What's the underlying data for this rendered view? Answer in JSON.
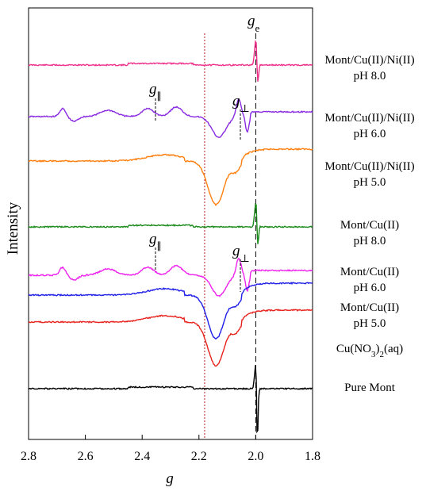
{
  "chart_data": {
    "type": "line",
    "xlabel": "g",
    "ylabel": "Intensity",
    "xlim": [
      2.8,
      1.8
    ],
    "x_reversed": true,
    "x_ticks": [
      "2.8",
      "2.6",
      "2.4",
      "2.2",
      "2.0",
      "1.8"
    ],
    "y_ticks_shown": false,
    "legend": "labels to the right of each trace",
    "reference_lines": [
      {
        "x": 2.18,
        "style": "dotted",
        "color": "#b22222"
      },
      {
        "x": 2.0,
        "style": "dashed",
        "color": "#000000"
      }
    ],
    "annotations": [
      {
        "text": "g",
        "subscript": "e",
        "x": 2.0,
        "near": "top"
      },
      {
        "text": "g",
        "subscript": "∥",
        "x": 2.35,
        "series": "Mont/Cu(II)/Ni(II) pH 6.0"
      },
      {
        "text": "g",
        "subscript": "⊥",
        "x": 2.05,
        "series": "Mont/Cu(II)/Ni(II) pH 6.0"
      },
      {
        "text": "g",
        "subscript": "∥",
        "x": 2.35,
        "series": "Mont/Cu(II) pH 6.0"
      },
      {
        "text": "g",
        "subscript": "⊥",
        "x": 2.05,
        "series": "Mont/Cu(II) pH 6.0"
      }
    ],
    "series": [
      {
        "name": "Mont/Cu(II)/Ni(II)",
        "name2": "pH 8.0",
        "color": "#ee2f89",
        "shape": "sharp",
        "peak_g": 2.0
      },
      {
        "name": "Mont/Cu(II)/Ni(II)",
        "name2": "pH 6.0",
        "color": "#8a2be2",
        "shape": "hyperfine",
        "peak_g": 2.13
      },
      {
        "name": "Mont/Cu(II)/Ni(II)",
        "name2": "pH 5.0",
        "color": "#ff7f0e",
        "shape": "broad",
        "peak_g": 2.14
      },
      {
        "name": "Mont/Cu(II)",
        "name2": "pH 8.0",
        "color": "#1a8a1a",
        "shape": "sharp",
        "peak_g": 2.0
      },
      {
        "name": "Mont/Cu(II)",
        "name2": "pH 6.0",
        "color": "#ee22ee",
        "shape": "hyperfine",
        "peak_g": 2.13
      },
      {
        "name": "Mont/Cu(II)",
        "name2": "pH 5.0",
        "color": "#1f1fe8",
        "shape": "broad",
        "peak_g": 2.14
      },
      {
        "name": "Cu(NO",
        "sub": "3",
        "name_tail": ")",
        "sub2": "2",
        "name_tail2": "(aq)",
        "color": "#e8221c",
        "shape": "broad",
        "peak_g": 2.14
      },
      {
        "name": "Pure Mont",
        "color": "#000000",
        "shape": "sharp",
        "peak_g": 2.0
      }
    ]
  }
}
